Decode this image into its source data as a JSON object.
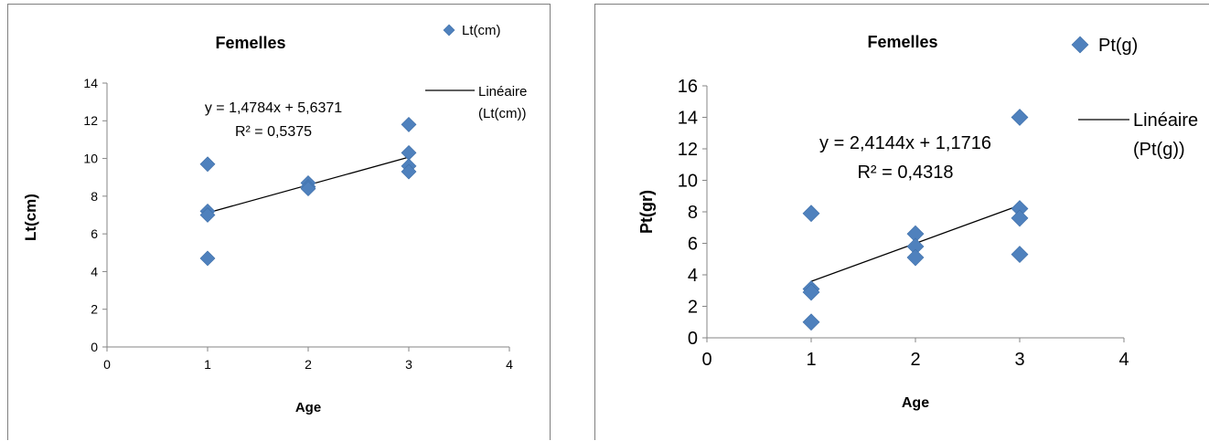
{
  "chart_data": [
    {
      "type": "scatter",
      "title": "Femelles",
      "xlabel": "Age",
      "ylabel": "Lt(cm)",
      "xlim": [
        0,
        4
      ],
      "ylim": [
        0,
        14
      ],
      "xticks": [
        "0",
        "1",
        "2",
        "3",
        "4"
      ],
      "yticks": [
        "0",
        "2",
        "4",
        "6",
        "8",
        "10",
        "12",
        "14"
      ],
      "grid": false,
      "legend_position": "right",
      "series": [
        {
          "name": "Lt(cm)",
          "color": "#4f81bd",
          "points": [
            {
              "x": 1,
              "y": 9.7
            },
            {
              "x": 1,
              "y": 7.2
            },
            {
              "x": 1,
              "y": 7.0
            },
            {
              "x": 1,
              "y": 4.7
            },
            {
              "x": 2,
              "y": 8.7
            },
            {
              "x": 2,
              "y": 8.5
            },
            {
              "x": 2,
              "y": 8.4
            },
            {
              "x": 3,
              "y": 11.8
            },
            {
              "x": 3,
              "y": 10.3
            },
            {
              "x": 3,
              "y": 9.6
            },
            {
              "x": 3,
              "y": 9.3
            }
          ]
        }
      ],
      "trendline": {
        "name": "Linéaire (Lt(cm))",
        "legend_lines": [
          "Linéaire",
          "(Lt(cm))"
        ],
        "slope": 1.4784,
        "intercept": 5.6371,
        "x_range": [
          1,
          3
        ],
        "equation": "y = 1,4784x + 5,6371",
        "r2": "R² = 0,5375"
      }
    },
    {
      "type": "scatter",
      "title": "Femelles",
      "xlabel": "Age",
      "ylabel": "Pt(gr)",
      "xlim": [
        0,
        4
      ],
      "ylim": [
        0,
        16
      ],
      "xticks": [
        "0",
        "1",
        "2",
        "3",
        "4"
      ],
      "yticks": [
        "0",
        "2",
        "4",
        "6",
        "8",
        "10",
        "12",
        "14",
        "16"
      ],
      "grid": false,
      "legend_position": "right",
      "series": [
        {
          "name": "Pt(g)",
          "color": "#4f81bd",
          "points": [
            {
              "x": 1,
              "y": 7.9
            },
            {
              "x": 1,
              "y": 3.1
            },
            {
              "x": 1,
              "y": 2.9
            },
            {
              "x": 1,
              "y": 1.0
            },
            {
              "x": 2,
              "y": 6.6
            },
            {
              "x": 2,
              "y": 5.8
            },
            {
              "x": 2,
              "y": 5.1
            },
            {
              "x": 3,
              "y": 14.0
            },
            {
              "x": 3,
              "y": 8.2
            },
            {
              "x": 3,
              "y": 7.6
            },
            {
              "x": 3,
              "y": 5.3
            }
          ]
        }
      ],
      "trendline": {
        "name": "Linéaire (Pt(g))",
        "legend_lines": [
          "Linéaire",
          "(Pt(g))"
        ],
        "slope": 2.4144,
        "intercept": 1.1716,
        "x_range": [
          1,
          3
        ],
        "equation": "y = 2,4144x + 1,1716",
        "r2": "R² = 0,4318"
      }
    }
  ]
}
